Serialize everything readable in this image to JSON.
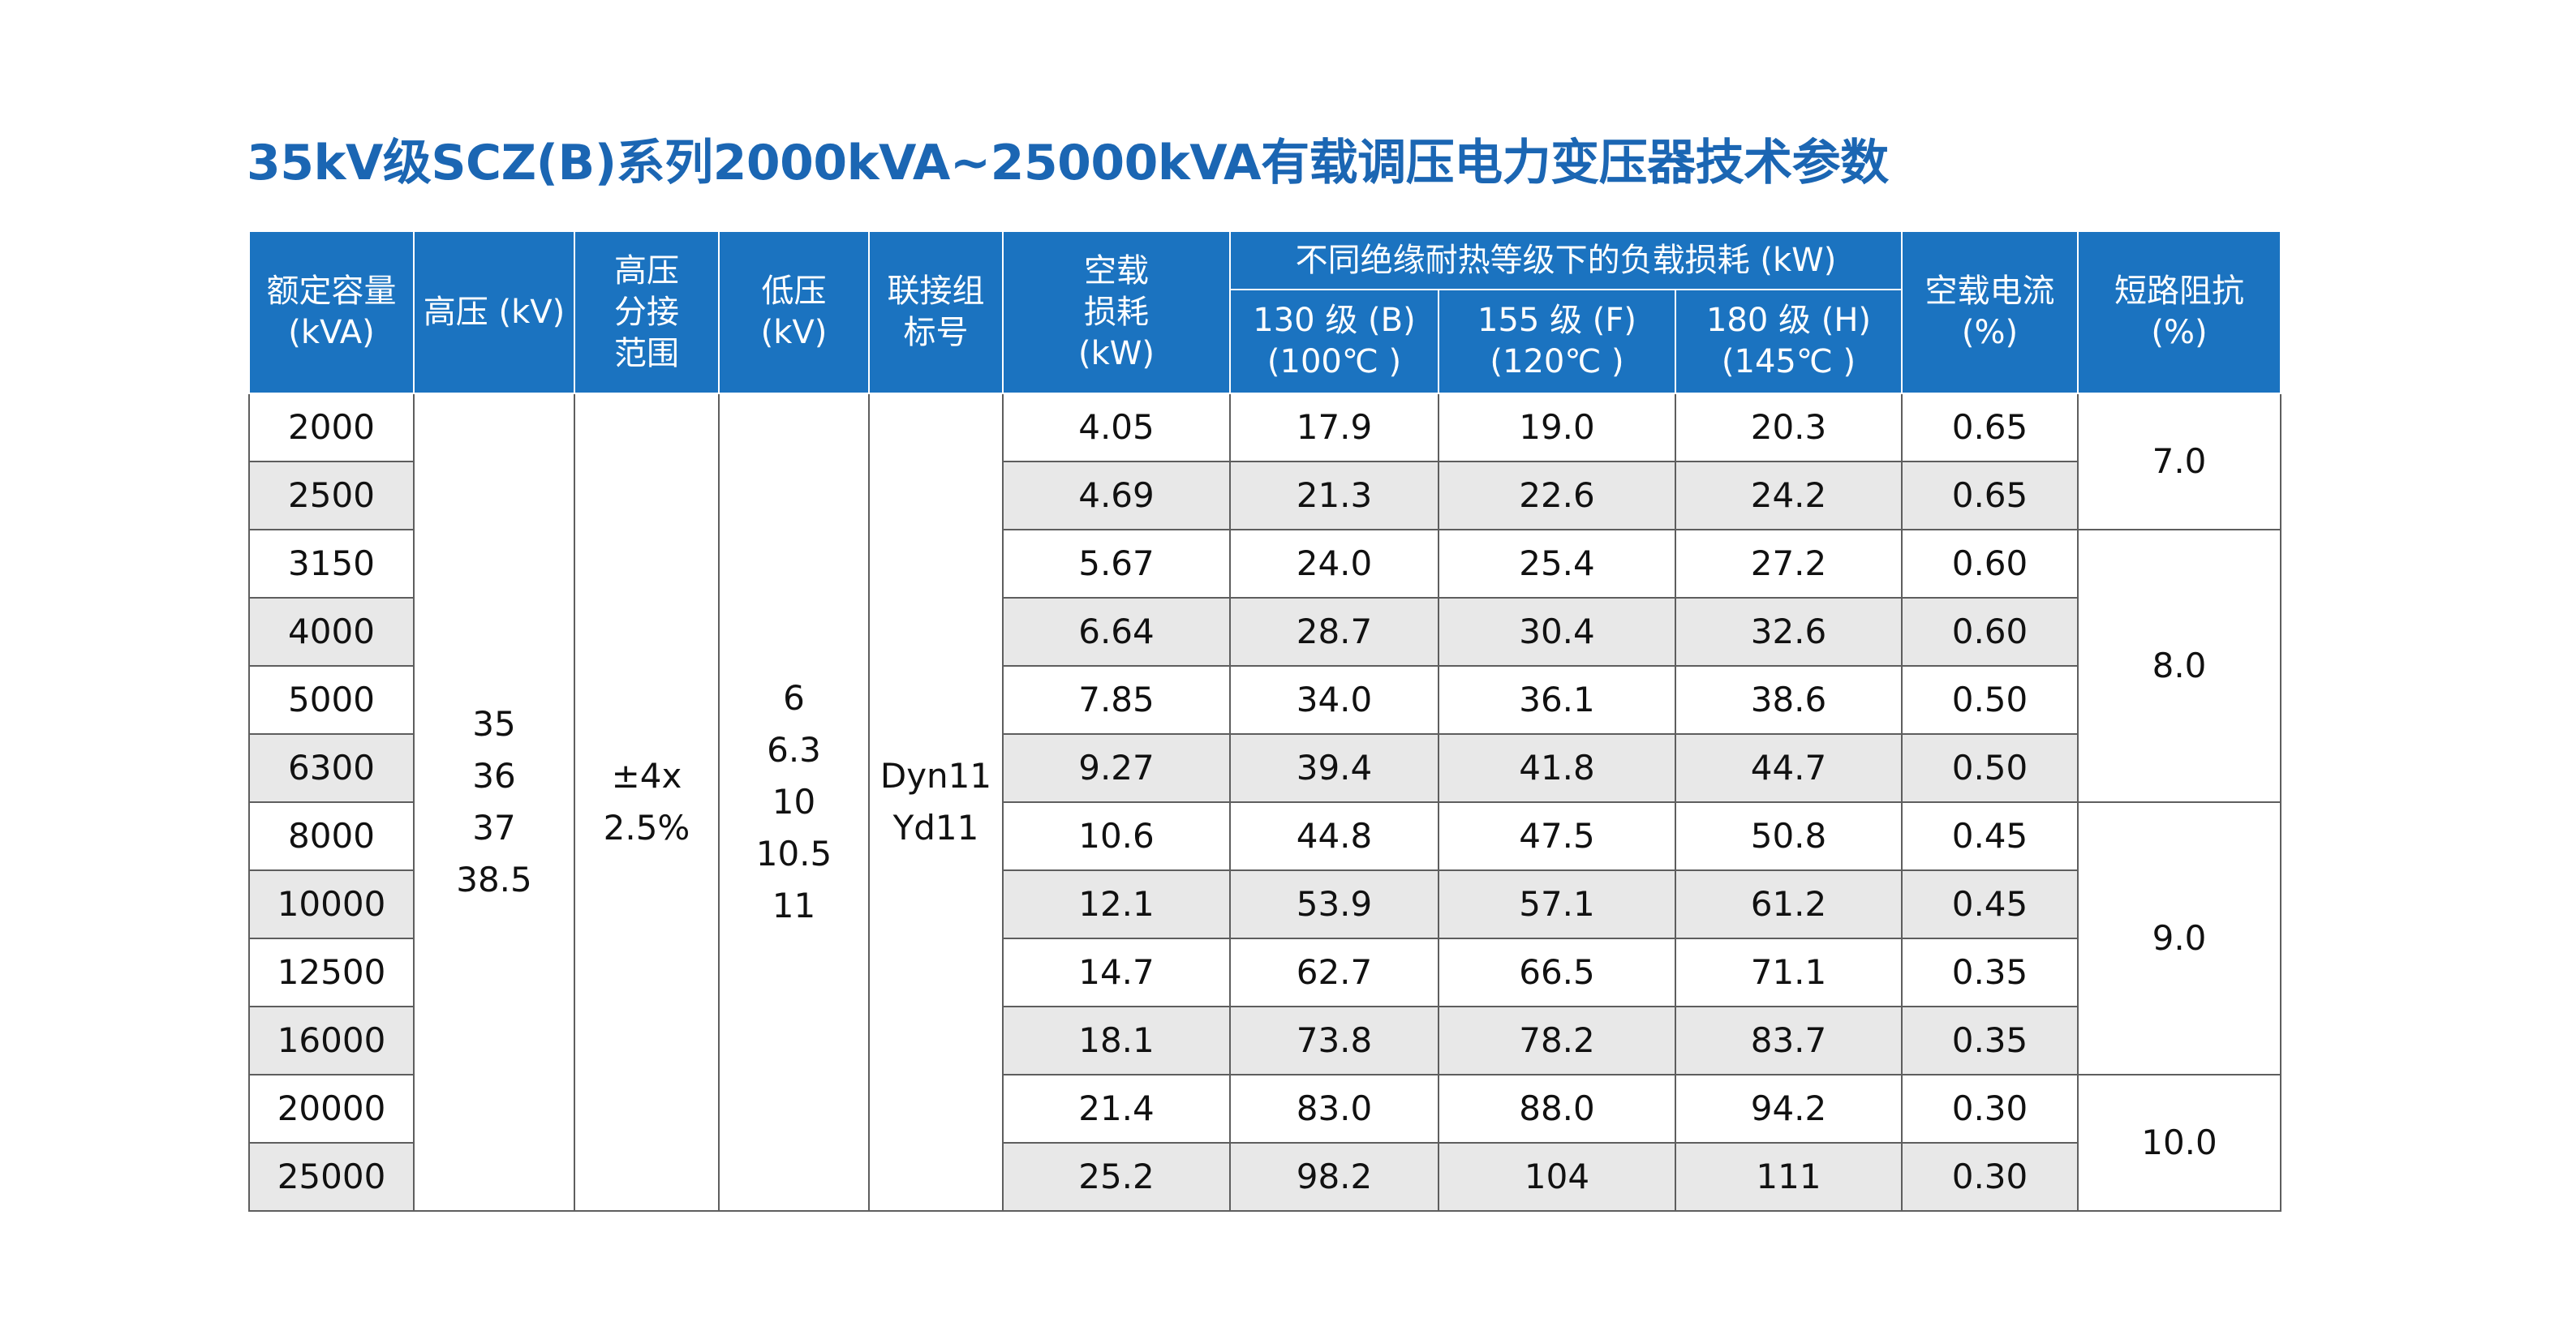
{
  "title": "35kV级SCZ(B)系列2000kVA~25000kVA有载调压电力变压器技术参数",
  "headers": {
    "capacity": [
      "额定容量",
      "(kVA)"
    ],
    "hv": [
      "高压 (kV)"
    ],
    "tap_range": [
      "高压",
      "分接",
      "范围"
    ],
    "lv": [
      "低压",
      "(kV)"
    ],
    "vector_group": [
      "联接组",
      "标号"
    ],
    "no_load_loss": [
      "空载",
      "损耗",
      "(kW)"
    ],
    "load_loss_group": "不同绝缘耐热等级下的负载损耗 (kW)",
    "load_loss_b": [
      "130 级 (B)",
      "(100℃ )"
    ],
    "load_loss_f": [
      "155 级 (F)",
      "(120℃ )"
    ],
    "load_loss_h": [
      "180 级 (H)",
      "(145℃ )"
    ],
    "no_load_current": [
      "空载电流",
      "(%)"
    ],
    "impedance": [
      "短路阻抗",
      "(%)"
    ]
  },
  "merged": {
    "hv": [
      "35",
      "36",
      "37",
      "38.5"
    ],
    "tap": [
      "±4x",
      "2.5%"
    ],
    "lv": [
      "6",
      "6.3",
      "10",
      "10.5",
      "11"
    ],
    "vector": [
      "Dyn11",
      "Yd11"
    ],
    "impedance": [
      "7.0",
      "8.0",
      "9.0",
      "10.0"
    ]
  },
  "rows": [
    {
      "capacity": "2000",
      "p0": "4.05",
      "pk_b": "17.9",
      "pk_f": "19.0",
      "pk_h": "20.3",
      "i0": "0.65"
    },
    {
      "capacity": "2500",
      "p0": "4.69",
      "pk_b": "21.3",
      "pk_f": "22.6",
      "pk_h": "24.2",
      "i0": "0.65"
    },
    {
      "capacity": "3150",
      "p0": "5.67",
      "pk_b": "24.0",
      "pk_f": "25.4",
      "pk_h": "27.2",
      "i0": "0.60"
    },
    {
      "capacity": "4000",
      "p0": "6.64",
      "pk_b": "28.7",
      "pk_f": "30.4",
      "pk_h": "32.6",
      "i0": "0.60"
    },
    {
      "capacity": "5000",
      "p0": "7.85",
      "pk_b": "34.0",
      "pk_f": "36.1",
      "pk_h": "38.6",
      "i0": "0.50"
    },
    {
      "capacity": "6300",
      "p0": "9.27",
      "pk_b": "39.4",
      "pk_f": "41.8",
      "pk_h": "44.7",
      "i0": "0.50"
    },
    {
      "capacity": "8000",
      "p0": "10.6",
      "pk_b": "44.8",
      "pk_f": "47.5",
      "pk_h": "50.8",
      "i0": "0.45"
    },
    {
      "capacity": "10000",
      "p0": "12.1",
      "pk_b": "53.9",
      "pk_f": "57.1",
      "pk_h": "61.2",
      "i0": "0.45"
    },
    {
      "capacity": "12500",
      "p0": "14.7",
      "pk_b": "62.7",
      "pk_f": "66.5",
      "pk_h": "71.1",
      "i0": "0.35"
    },
    {
      "capacity": "16000",
      "p0": "18.1",
      "pk_b": "73.8",
      "pk_f": "78.2",
      "pk_h": "83.7",
      "i0": "0.35"
    },
    {
      "capacity": "20000",
      "p0": "21.4",
      "pk_b": "83.0",
      "pk_f": "88.0",
      "pk_h": "94.2",
      "i0": "0.30"
    },
    {
      "capacity": "25000",
      "p0": "25.2",
      "pk_b": "98.2",
      "pk_f": "104",
      "pk_h": "111",
      "i0": "0.30"
    }
  ],
  "colors": {
    "title": "#1b66b3",
    "header_bg": "#1b73c0",
    "header_text": "#ffffff",
    "stripe": "#e8e8e8",
    "border": "#5e5e5e"
  }
}
